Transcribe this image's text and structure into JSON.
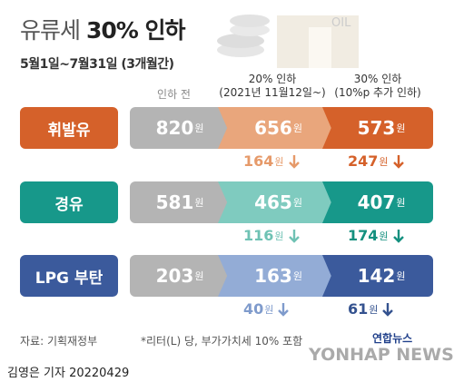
{
  "header": {
    "title_prefix": "유류세",
    "title_bold": "30% 인하",
    "subtitle": "5월1일~7월31일 (3개월간)"
  },
  "columns": {
    "before": "인하 전",
    "cut20": "20% 인하",
    "cut20_note": "(2021년 11월12일~)",
    "cut30": "30% 인하",
    "cut30_note": "(10%p 추가 인하)"
  },
  "unit": "원",
  "rows": [
    {
      "name": "휘발유",
      "before": 820,
      "cut20": 656,
      "cut30": 573,
      "diff20": 164,
      "diff30": 247
    },
    {
      "name": "경유",
      "before": 581,
      "cut20": 465,
      "cut30": 407,
      "diff20": 116,
      "diff30": 174
    },
    {
      "name": "LPG 부탄",
      "before": 203,
      "cut20": 163,
      "cut30": 142,
      "diff20": 40,
      "diff30": 61
    }
  ],
  "footer": {
    "source": "자료: 기획재정부",
    "note": "*리터(L) 당, 부가가치세 10% 포함",
    "byline": "김영은 기자  20220429",
    "logo": "연합뉴스",
    "logo_en": "YONHAP NEWS"
  }
}
